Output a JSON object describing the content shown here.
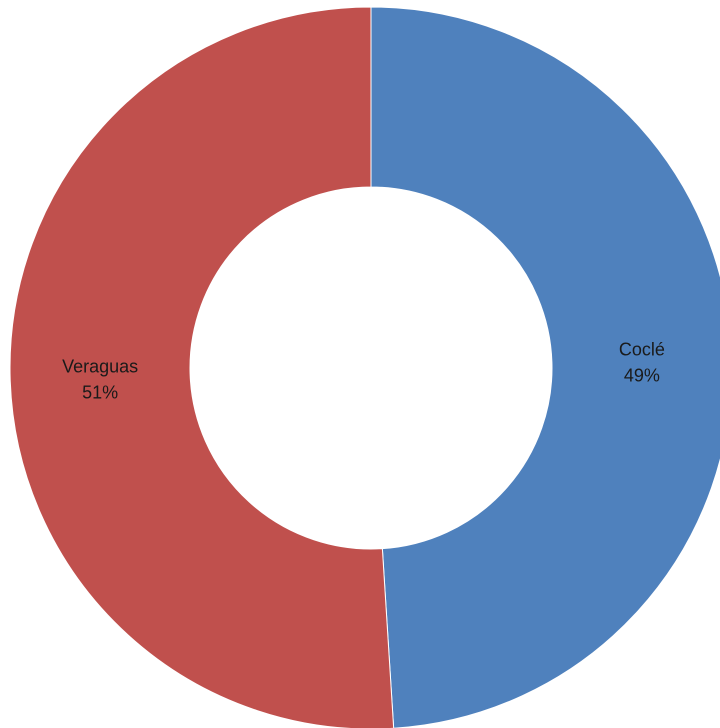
{
  "chart_data": {
    "type": "pie",
    "variant": "doughnut",
    "title": "",
    "legend": "none",
    "categories": [
      "Coclé",
      "Veraguas"
    ],
    "values": [
      49,
      51
    ],
    "value_labels": [
      "49%",
      "51%"
    ],
    "colors": [
      "#4f81bd",
      "#c0504d"
    ]
  }
}
